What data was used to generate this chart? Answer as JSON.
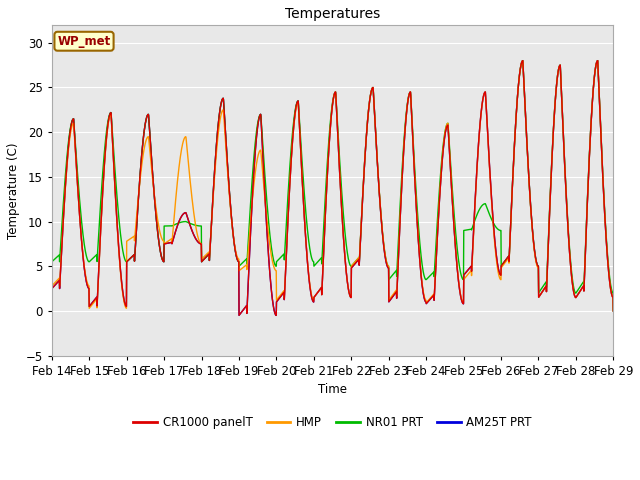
{
  "title": "Temperatures",
  "xlabel": "Time",
  "ylabel": "Temperature (C)",
  "ylim": [
    -5,
    32
  ],
  "xlim": [
    0,
    15
  ],
  "outer_bg": "#ffffff",
  "plot_bg_color": "#e8e8e8",
  "grid_color": "#ffffff",
  "annotation_text": "WP_met",
  "annotation_bg": "#ffffcc",
  "annotation_border": "#996600",
  "series_colors": {
    "CR1000 panelT": "#dd0000",
    "HMP": "#ff9900",
    "NR01 PRT": "#00bb00",
    "AM25T PRT": "#0000dd"
  },
  "tick_labels": [
    "Feb 14",
    "Feb 15",
    "Feb 16",
    "Feb 17",
    "Feb 18",
    "Feb 19",
    "Feb 20",
    "Feb 21",
    "Feb 22",
    "Feb 23",
    "Feb 24",
    "Feb 25",
    "Feb 26",
    "Feb 27",
    "Feb 28",
    "Feb 29"
  ],
  "yticks": [
    -5,
    0,
    5,
    10,
    15,
    20,
    25,
    30
  ],
  "linewidth": 1.0,
  "font_size": 8.5,
  "title_fontsize": 10
}
